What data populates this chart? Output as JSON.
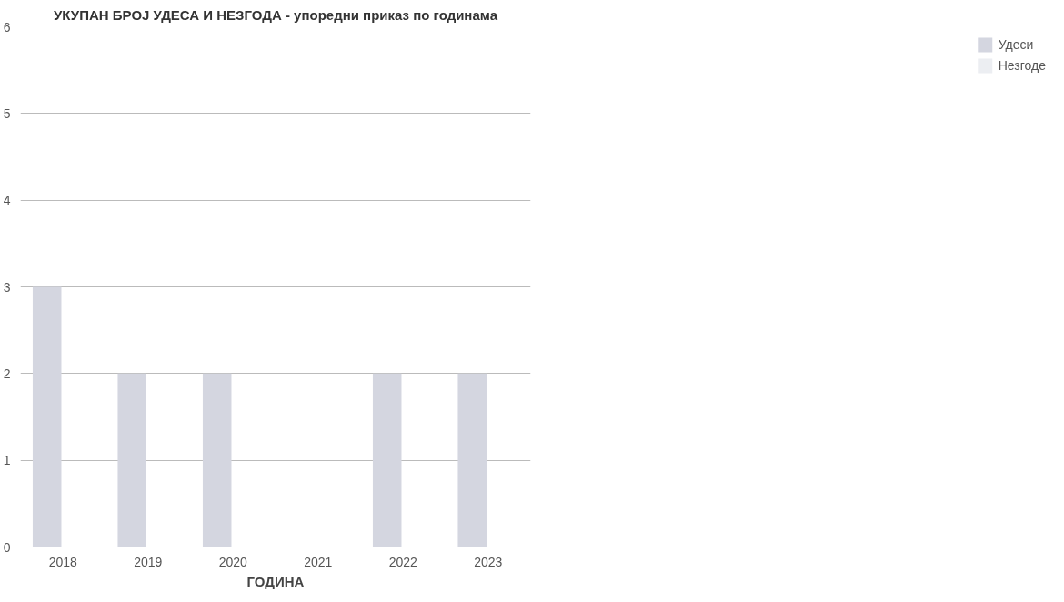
{
  "chart_data": {
    "type": "bar",
    "title": "УКУПАН БРОЈ УДЕСА И НЕЗГОДА - упоредни приказ по годинама",
    "xlabel": "ГОДИНА",
    "categories": [
      "2018",
      "2019",
      "2020",
      "2021",
      "2022",
      "2023"
    ],
    "series": [
      {
        "name": "Удеси",
        "color": "#d4d6e0",
        "values": [
          3,
          2,
          2,
          0,
          2,
          2
        ]
      },
      {
        "name": "Незгоде",
        "color": "#eceef2",
        "values": [
          null,
          null,
          null,
          null,
          null,
          null
        ]
      }
    ],
    "ylim": [
      0,
      6
    ],
    "yticks": [
      0,
      1,
      2,
      3,
      4,
      5,
      6
    ],
    "grid": "y",
    "legend": "right"
  }
}
